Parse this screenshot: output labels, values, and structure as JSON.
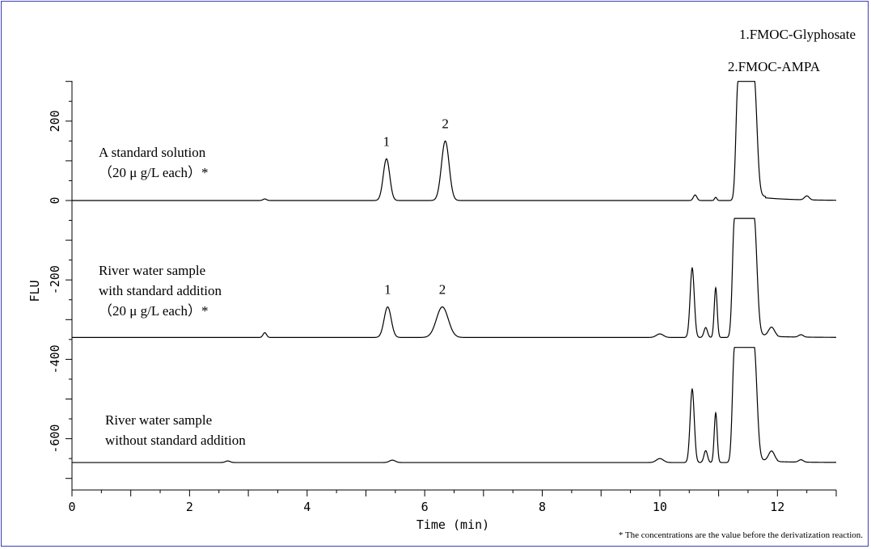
{
  "chart_data": {
    "type": "line",
    "xlabel": "Time (min)",
    "ylabel": "FLU",
    "xlim": [
      0,
      13
    ],
    "ylim": [
      -720,
      300
    ],
    "x_ticks": [
      0,
      2,
      4,
      6,
      8,
      10,
      12
    ],
    "y_ticks": [
      200,
      0,
      -200,
      -400,
      -600
    ],
    "legend": [
      "1.FMOC-Glyphosate",
      "2.FMOC-AMPA"
    ],
    "footnote": "* The concentrations are the value before the derivatization reaction.",
    "series": [
      {
        "label_lines": [
          "A standard solution",
          "（20 μ g/L each）*"
        ],
        "baseline": 0,
        "peaks": [
          {
            "x": 3.28,
            "h": 4,
            "w": 0.03
          },
          {
            "x": 5.35,
            "h": 105,
            "w": 0.055,
            "label": "1"
          },
          {
            "x": 6.35,
            "h": 150,
            "w": 0.065,
            "label": "2"
          },
          {
            "x": 10.6,
            "h": 14,
            "w": 0.03
          },
          {
            "x": 10.95,
            "h": 8,
            "w": 0.02
          },
          {
            "x": 12.5,
            "h": 10,
            "w": 0.04
          }
        ],
        "tail": {
          "from": 11.8,
          "y": 10
        },
        "clip_top": 300,
        "clip_range": [
          11.33,
          11.6
        ]
      },
      {
        "label_lines": [
          "River water sample",
          "with standard addition",
          "（20 μ g/L each）*"
        ],
        "baseline": -345,
        "peaks": [
          {
            "x": 3.28,
            "h": 12,
            "w": 0.03
          },
          {
            "x": 5.37,
            "h": 77,
            "w": 0.06,
            "label": "1"
          },
          {
            "x": 6.3,
            "h": 77,
            "w": 0.1,
            "label": "2"
          },
          {
            "x": 10.0,
            "h": 9,
            "w": 0.06
          },
          {
            "x": 10.55,
            "h": 175,
            "w": 0.035
          },
          {
            "x": 10.78,
            "h": 25,
            "w": 0.03
          },
          {
            "x": 10.95,
            "h": 125,
            "w": 0.025
          },
          {
            "x": 11.9,
            "h": 22,
            "w": 0.05
          },
          {
            "x": 12.4,
            "h": 6,
            "w": 0.04
          }
        ],
        "tail": {
          "from": 12.0,
          "y": 5
        },
        "clip_top": -45,
        "clip_range": [
          11.27,
          11.6
        ]
      },
      {
        "label_lines": [
          "River water sample",
          "without standard addition"
        ],
        "baseline": -660,
        "peaks": [
          {
            "x": 2.65,
            "h": 4,
            "w": 0.04
          },
          {
            "x": 5.45,
            "h": 6,
            "w": 0.05
          },
          {
            "x": 10.0,
            "h": 10,
            "w": 0.06
          },
          {
            "x": 10.55,
            "h": 185,
            "w": 0.035
          },
          {
            "x": 10.78,
            "h": 30,
            "w": 0.03
          },
          {
            "x": 10.95,
            "h": 125,
            "w": 0.025
          },
          {
            "x": 11.9,
            "h": 25,
            "w": 0.05
          },
          {
            "x": 12.4,
            "h": 6,
            "w": 0.04
          }
        ],
        "tail": {
          "from": 12.0,
          "y": 5
        },
        "clip_top": -370,
        "clip_range": [
          11.27,
          11.6
        ]
      }
    ]
  }
}
